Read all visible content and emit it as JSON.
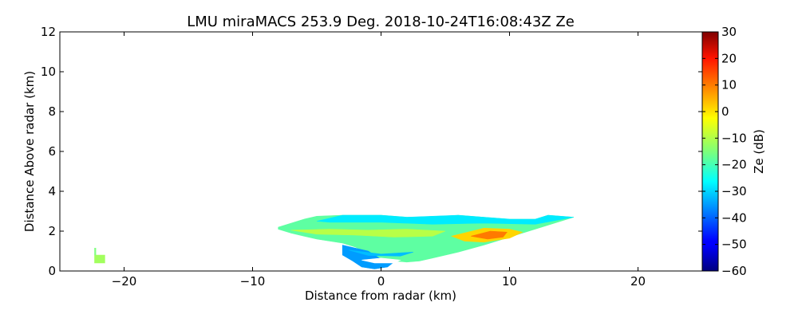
{
  "chart_data": {
    "type": "heatmap",
    "title": "LMU miraMACS 253.9 Deg. 2018-10-24T16:08:43Z  Ze",
    "xlabel": "Distance from radar (km)",
    "ylabel": "Distance Above radar  (km)",
    "xlim": [
      -25,
      25
    ],
    "ylim": [
      0,
      12
    ],
    "xticks": [
      -20,
      -10,
      0,
      10,
      20
    ],
    "xtick_labels": [
      "−20",
      "−10",
      "0",
      "10",
      "20"
    ],
    "yticks": [
      0,
      2,
      4,
      6,
      8,
      10,
      12
    ],
    "ytick_labels": [
      "0",
      "2",
      "4",
      "6",
      "8",
      "10",
      "12"
    ],
    "grid": false,
    "colorbar": {
      "label": "Ze (dB)",
      "range": [
        -60,
        30
      ],
      "colormap": "jet",
      "ticks": [
        30,
        20,
        10,
        0,
        -10,
        -20,
        -30,
        -40,
        -50,
        -60
      ],
      "tick_labels": [
        "30",
        "20",
        "10",
        "0",
        "−10",
        "−20",
        "−30",
        "−40",
        "−50",
        "−60"
      ]
    },
    "echo_regions": [
      {
        "name": "main-echo",
        "outline_km": [
          [
            -8,
            2.2
          ],
          [
            -7,
            2.4
          ],
          [
            -6,
            2.6
          ],
          [
            -5,
            2.75
          ],
          [
            -3,
            2.8
          ],
          [
            0,
            2.8
          ],
          [
            2,
            2.7
          ],
          [
            4,
            2.7
          ],
          [
            6,
            2.8
          ],
          [
            8,
            2.7
          ],
          [
            10,
            2.6
          ],
          [
            12,
            2.6
          ],
          [
            13,
            2.8
          ],
          [
            15,
            2.7
          ],
          [
            14,
            2.5
          ],
          [
            12,
            2.1
          ],
          [
            10,
            1.7
          ],
          [
            8,
            1.3
          ],
          [
            6,
            0.95
          ],
          [
            4,
            0.65
          ],
          [
            3,
            0.5
          ],
          [
            2,
            0.45
          ],
          [
            1,
            0.5
          ],
          [
            0,
            0.6
          ],
          [
            -1,
            0.9
          ],
          [
            -2,
            1.2
          ],
          [
            -3,
            1.4
          ],
          [
            -5,
            1.6
          ],
          [
            -7,
            1.9
          ],
          [
            -8,
            2.1
          ]
        ],
        "ze_db": -18
      },
      {
        "name": "lower-plume",
        "outline_km": [
          [
            -3,
            1.3
          ],
          [
            -1,
            1.0
          ],
          [
            0,
            0.6
          ],
          [
            1,
            0.45
          ],
          [
            0.5,
            0.2
          ],
          [
            -0.5,
            0.1
          ],
          [
            -1.5,
            0.2
          ],
          [
            -2.2,
            0.5
          ],
          [
            -3,
            0.8
          ]
        ],
        "ze_db": -35
      },
      {
        "name": "ground-clutter",
        "outline_km": [
          [
            -22.3,
            0.4
          ],
          [
            -21.5,
            0.4
          ],
          [
            -21.5,
            0.8
          ],
          [
            -22.3,
            0.8
          ]
        ],
        "ze_db": -12
      },
      {
        "name": "ground-clutter-stem",
        "outline_km": [
          [
            -22.3,
            0.8
          ],
          [
            -22.2,
            0.8
          ],
          [
            -22.2,
            1.15
          ],
          [
            -22.3,
            1.15
          ]
        ],
        "ze_db": -15
      },
      {
        "name": "cloud-top",
        "outline_km": [
          [
            -5,
            2.5
          ],
          [
            -3,
            2.8
          ],
          [
            0,
            2.8
          ],
          [
            2,
            2.7
          ],
          [
            6,
            2.8
          ],
          [
            8,
            2.7
          ],
          [
            10,
            2.6
          ],
          [
            12,
            2.6
          ],
          [
            13,
            2.8
          ],
          [
            15,
            2.7
          ],
          [
            12,
            2.35
          ],
          [
            8,
            2.4
          ],
          [
            4,
            2.35
          ],
          [
            0,
            2.45
          ],
          [
            -4,
            2.45
          ]
        ],
        "ze_db": -28
      },
      {
        "name": "upper-core",
        "outline_km": [
          [
            -7,
            2.05
          ],
          [
            -4,
            2.1
          ],
          [
            -1,
            2.05
          ],
          [
            2,
            2.1
          ],
          [
            5,
            2.0
          ],
          [
            4,
            1.75
          ],
          [
            1,
            1.7
          ],
          [
            -2,
            1.8
          ],
          [
            -5,
            1.85
          ]
        ],
        "ze_db": -10
      },
      {
        "name": "strong-core",
        "outline_km": [
          [
            5.5,
            1.75
          ],
          [
            8,
            2.15
          ],
          [
            10,
            2.1
          ],
          [
            11,
            1.95
          ],
          [
            10,
            1.65
          ],
          [
            8,
            1.45
          ],
          [
            6.5,
            1.5
          ]
        ],
        "ze_db": 0
      },
      {
        "name": "peak-core",
        "outline_km": [
          [
            7,
            1.75
          ],
          [
            8.5,
            2.0
          ],
          [
            9.8,
            1.95
          ],
          [
            9.5,
            1.7
          ],
          [
            8.3,
            1.6
          ]
        ],
        "ze_db": 8
      },
      {
        "name": "lower-weak-band",
        "outline_km": [
          [
            -2.5,
            1.05
          ],
          [
            0,
            0.85
          ],
          [
            2.5,
            0.95
          ],
          [
            1.5,
            0.75
          ],
          [
            -1,
            0.78
          ]
        ],
        "ze_db": -32
      },
      {
        "name": "echo-gap",
        "outline_km": [
          [
            -1.5,
            0.55
          ],
          [
            0,
            0.65
          ],
          [
            1.5,
            0.55
          ],
          [
            1,
            0.4
          ],
          [
            -0.5,
            0.4
          ]
        ],
        "ze_db": null
      }
    ]
  }
}
